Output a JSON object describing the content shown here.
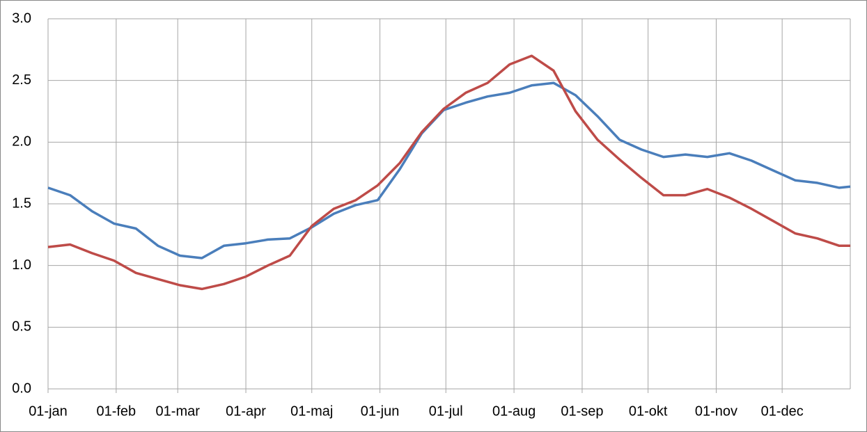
{
  "chart_data": {
    "type": "line",
    "x": [
      0,
      10,
      20,
      30,
      40,
      50,
      60,
      70,
      80,
      90,
      100,
      110,
      120,
      130,
      140,
      150,
      160,
      170,
      180,
      190,
      200,
      210,
      220,
      230,
      240,
      250,
      260,
      270,
      280,
      290,
      300,
      310,
      320,
      330,
      340,
      350,
      360,
      365
    ],
    "series": [
      {
        "color": "#4a7ebb",
        "values": [
          1.63,
          1.57,
          1.44,
          1.34,
          1.3,
          1.16,
          1.08,
          1.06,
          1.16,
          1.18,
          1.21,
          1.22,
          1.31,
          1.42,
          1.49,
          1.53,
          1.78,
          2.07,
          2.26,
          2.32,
          2.37,
          2.4,
          2.46,
          2.48,
          2.38,
          2.21,
          2.02,
          1.94,
          1.88,
          1.9,
          1.88,
          1.91,
          1.85,
          1.77,
          1.69,
          1.67,
          1.63,
          1.64
        ]
      },
      {
        "color": "#be4b48",
        "values": [
          1.15,
          1.17,
          1.1,
          1.04,
          0.94,
          0.89,
          0.84,
          0.81,
          0.85,
          0.91,
          1.0,
          1.08,
          1.32,
          1.46,
          1.53,
          1.65,
          1.83,
          2.08,
          2.27,
          2.4,
          2.48,
          2.63,
          2.7,
          2.58,
          2.25,
          2.02,
          1.86,
          1.71,
          1.57,
          1.57,
          1.62,
          1.55,
          1.46,
          1.36,
          1.26,
          1.22,
          1.16,
          1.16
        ]
      }
    ],
    "xlim": [
      0,
      365
    ],
    "xticks": [
      {
        "value": 0,
        "label": "01-jan"
      },
      {
        "value": 31,
        "label": "01-feb"
      },
      {
        "value": 59,
        "label": "01-mar"
      },
      {
        "value": 90,
        "label": "01-apr"
      },
      {
        "value": 120,
        "label": "01-maj"
      },
      {
        "value": 151,
        "label": "01-jun"
      },
      {
        "value": 181,
        "label": "01-jul"
      },
      {
        "value": 212,
        "label": "01-aug"
      },
      {
        "value": 243,
        "label": "01-sep"
      },
      {
        "value": 273,
        "label": "01-okt"
      },
      {
        "value": 304,
        "label": "01-nov"
      },
      {
        "value": 334,
        "label": "01-dec"
      }
    ],
    "ylim": [
      0,
      3
    ],
    "yticks": [
      {
        "value": 0,
        "label": "0.0"
      },
      0.5,
      {
        "value": 1,
        "label": "1.0"
      },
      1.5,
      {
        "value": 2,
        "label": "2.0"
      },
      2.5,
      {
        "value": 3,
        "label": "3.0"
      }
    ],
    "grid": true
  }
}
